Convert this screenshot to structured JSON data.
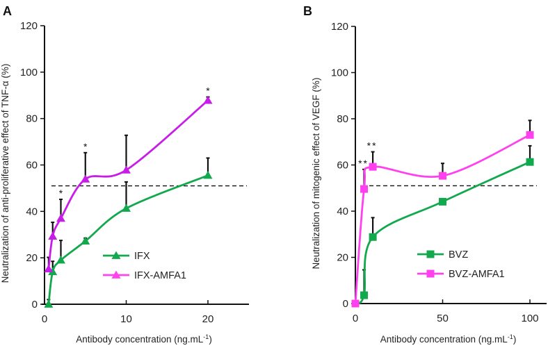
{
  "chart_data": [
    {
      "panel": "A",
      "type": "line",
      "title": "",
      "xlabel": "Antibody concentration (ng.mL",
      "xlabel_sup": "-1",
      "xlabel_tail": ")",
      "ylabel": "Neutralization of anti-proliferative effect of TNF-α  (%)",
      "xlim": [
        0,
        25
      ],
      "ylim": [
        0,
        120
      ],
      "xticks": [
        0,
        10,
        20
      ],
      "yticks": [
        0,
        20,
        40,
        60,
        80,
        100,
        120
      ],
      "threshold": 51,
      "legend_position": "center-bottom",
      "marker": "triangle",
      "series": [
        {
          "name": "IFX",
          "color": "#12a84e",
          "legend_color": "#12a84e",
          "x": [
            0.5,
            1,
            2,
            5,
            10,
            20
          ],
          "y": [
            0,
            14,
            19,
            27.2,
            41.3,
            55.5
          ],
          "err": [
            2,
            4.5,
            8.5,
            1.3,
            11.4,
            7.5
          ]
        },
        {
          "name": "IFX-AMFA1",
          "color": "#c81de8",
          "legend_color": "#ff44ee",
          "x": [
            0.5,
            1,
            2,
            5,
            10,
            20
          ],
          "y": [
            15.2,
            29.3,
            37,
            53.9,
            57.8,
            87.8
          ],
          "err": [
            5,
            6,
            8.2,
            11.4,
            15,
            1.5
          ],
          "significance": [
            "",
            "",
            "*",
            "*",
            "",
            "*"
          ]
        }
      ]
    },
    {
      "panel": "B",
      "type": "line",
      "title": "",
      "xlabel": "Antibody concentration (ng.mL",
      "xlabel_sup": "-1",
      "xlabel_tail": ")",
      "ylabel": "Neutralization of  mitogenic effect of VEGF (%)",
      "xlim": [
        0,
        110
      ],
      "ylim": [
        0,
        120
      ],
      "xticks": [
        0,
        50,
        100
      ],
      "yticks": [
        0,
        20,
        40,
        60,
        80,
        100,
        120
      ],
      "threshold": 51,
      "legend_position": "center-bottom",
      "marker": "square",
      "series": [
        {
          "name": "BVZ",
          "color": "#12a84e",
          "legend_color": "#12a84e",
          "x": [
            0,
            5,
            10,
            50,
            100
          ],
          "y": [
            0,
            3.6,
            28.8,
            44.1,
            61.3
          ],
          "err": [
            0,
            11,
            8.4,
            0,
            7
          ]
        },
        {
          "name": "BVZ-AMFA1",
          "color": "#ff40ee",
          "legend_color": "#ff40ee",
          "x": [
            0,
            5,
            10,
            50,
            100
          ],
          "y": [
            0,
            49.6,
            59.2,
            55.3,
            73
          ],
          "err": [
            0,
            8.5,
            6.5,
            5.4,
            6.3
          ],
          "significance": [
            "",
            "**",
            "**",
            "",
            ""
          ]
        }
      ]
    }
  ]
}
